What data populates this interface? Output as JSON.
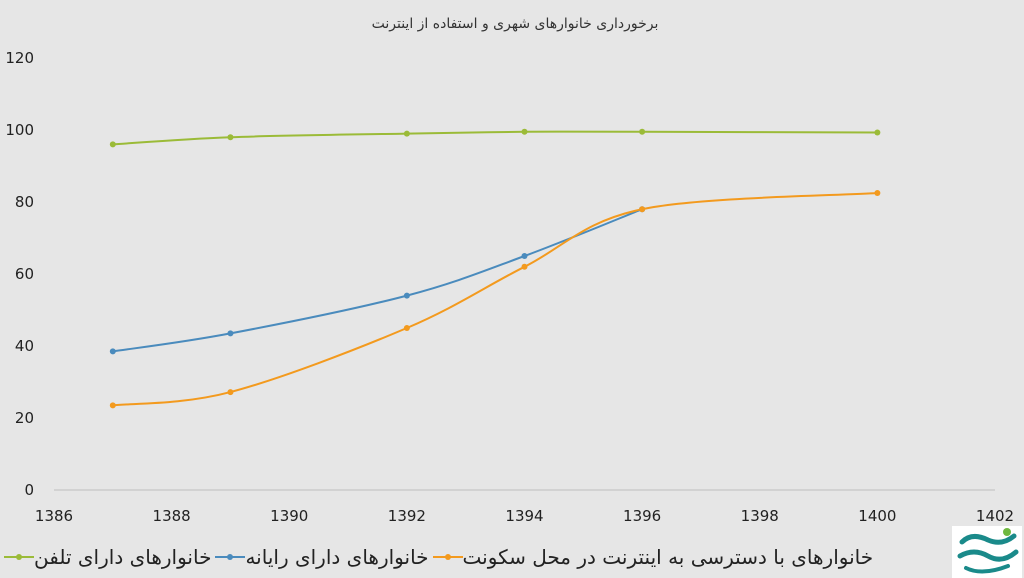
{
  "chart_data": {
    "type": "line",
    "title": "برخورداری خانوارهای شهری و استفاده از اینترنت",
    "xlim": [
      1386,
      1402
    ],
    "ylim": [
      0,
      120
    ],
    "x_ticks": [
      1386,
      1388,
      1390,
      1392,
      1394,
      1396,
      1398,
      1400,
      1402
    ],
    "y_ticks": [
      0,
      20,
      40,
      60,
      80,
      100,
      120
    ],
    "grid": false,
    "legend_position": "bottom",
    "series": [
      {
        "name": "خانوارهای دارای تلفن",
        "color": "#9bbb38",
        "points": [
          [
            1387,
            96
          ],
          [
            1389,
            98
          ],
          [
            1392,
            99
          ],
          [
            1394,
            99.5
          ],
          [
            1396,
            99.5
          ],
          [
            1400,
            99.3
          ]
        ]
      },
      {
        "name": "خانوارهای دارای رایانه",
        "color": "#4a8bbd",
        "points": [
          [
            1387,
            38.5
          ],
          [
            1389,
            43.5
          ],
          [
            1392,
            54
          ],
          [
            1394,
            65
          ],
          [
            1396,
            78
          ]
        ]
      },
      {
        "name": "خانوارهای با دسترسی به اینترنت در محل سکونت",
        "color": "#f39a1e",
        "points": [
          [
            1387,
            23.5
          ],
          [
            1389,
            27.2
          ],
          [
            1392,
            45
          ],
          [
            1394,
            62
          ],
          [
            1396,
            78
          ],
          [
            1400,
            82.5
          ]
        ]
      }
    ]
  },
  "logo_icon": "brand-logo-icon"
}
